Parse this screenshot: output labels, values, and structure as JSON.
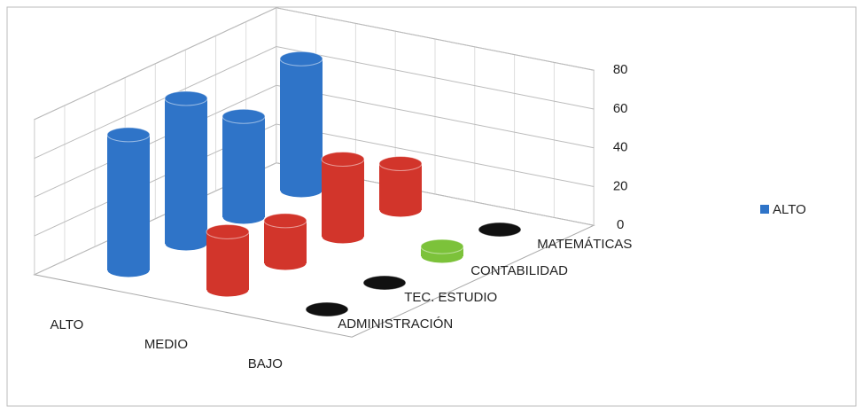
{
  "chart_data": {
    "type": "cylinder3d",
    "categories": [
      "ALTO",
      "MEDIO",
      "BAJO"
    ],
    "series": [
      {
        "name": "ADMINISTRACIÓN",
        "colors": [
          "#2f74c8",
          "#d2352b",
          "#111111"
        ],
        "values": [
          70,
          30,
          0
        ]
      },
      {
        "name": "TEC. ESTUDIO",
        "colors": [
          "#2f74c8",
          "#d2352b",
          "#111111"
        ],
        "values": [
          75,
          22,
          0
        ]
      },
      {
        "name": "CONTABILIDAD",
        "colors": [
          "#2f74c8",
          "#d2352b",
          "#7cc23a"
        ],
        "values": [
          52,
          40,
          5
        ]
      },
      {
        "name": "MATEMÁTICAS",
        "colors": [
          "#2f74c8",
          "#d2352b",
          "#111111"
        ],
        "values": [
          68,
          24,
          0
        ]
      }
    ],
    "ylim": [
      0,
      80
    ],
    "yticks": [
      0,
      20,
      40,
      60,
      80
    ],
    "grid": true,
    "legend": {
      "label": "ALTO",
      "color": "#2f74c8"
    }
  }
}
